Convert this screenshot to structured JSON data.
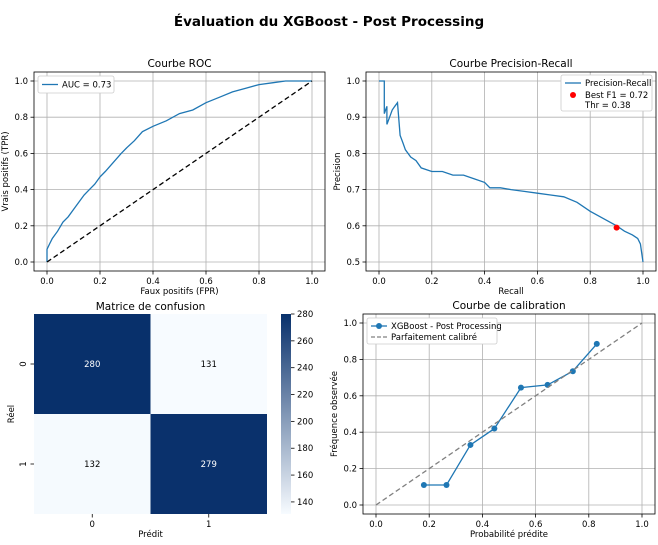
{
  "title": "Évaluation du XGBoost - Post Processing",
  "chart_data": [
    {
      "id": "roc",
      "type": "line",
      "title": "Courbe ROC",
      "xlabel": "Faux positifs (FPR)",
      "ylabel": "Vrais positifs (TPR)",
      "xlim": [
        0,
        1
      ],
      "ylim": [
        0,
        1
      ],
      "ticks": {
        "x": [
          "0.0",
          "0.2",
          "0.4",
          "0.6",
          "0.8",
          "1.0"
        ],
        "y": [
          "0.0",
          "0.2",
          "0.4",
          "0.6",
          "0.8",
          "1.0"
        ]
      },
      "grid": true,
      "legend": {
        "location": "upper left",
        "entries": [
          "AUC = 0.73"
        ]
      },
      "series": [
        {
          "name": "AUC = 0.73",
          "color": "#1f77b4",
          "style": "solid",
          "x": [
            0,
            0,
            0.01,
            0.02,
            0.04,
            0.06,
            0.08,
            0.1,
            0.12,
            0.14,
            0.16,
            0.18,
            0.2,
            0.22,
            0.25,
            0.28,
            0.3,
            0.33,
            0.36,
            0.4,
            0.45,
            0.5,
            0.55,
            0.6,
            0.65,
            0.7,
            0.75,
            0.8,
            0.85,
            0.9,
            0.95,
            1.0
          ],
          "y": [
            0,
            0.07,
            0.1,
            0.13,
            0.17,
            0.22,
            0.25,
            0.29,
            0.33,
            0.37,
            0.4,
            0.43,
            0.47,
            0.5,
            0.55,
            0.6,
            0.63,
            0.67,
            0.72,
            0.75,
            0.78,
            0.82,
            0.84,
            0.88,
            0.91,
            0.94,
            0.96,
            0.98,
            0.99,
            1.0,
            1.0,
            1.0
          ]
        },
        {
          "name": "diagonal",
          "color": "#000000",
          "style": "dashed",
          "x": [
            0,
            1
          ],
          "y": [
            0,
            1
          ]
        }
      ]
    },
    {
      "id": "pr",
      "type": "line",
      "title": "Courbe Precision-Recall",
      "xlabel": "Recall",
      "ylabel": "Precision",
      "xlim": [
        0,
        1
      ],
      "ylim": [
        0.5,
        1.0
      ],
      "ticks": {
        "x": [
          "0.0",
          "0.2",
          "0.4",
          "0.6",
          "0.8",
          "1.0"
        ],
        "y": [
          "0.5",
          "0.6",
          "0.7",
          "0.8",
          "0.9",
          "1.0"
        ]
      },
      "grid": true,
      "legend": {
        "location": "upper right",
        "entries": [
          "Precision-Recall",
          "Best F1 = 0.72",
          "Thr = 0.38"
        ]
      },
      "series": [
        {
          "name": "Precision-Recall",
          "color": "#1f77b4",
          "style": "solid",
          "x": [
            0.0,
            0.02,
            0.02,
            0.03,
            0.03,
            0.04,
            0.05,
            0.06,
            0.07,
            0.08,
            0.09,
            0.1,
            0.12,
            0.14,
            0.16,
            0.2,
            0.24,
            0.28,
            0.32,
            0.36,
            0.4,
            0.42,
            0.46,
            0.5,
            0.55,
            0.6,
            0.65,
            0.7,
            0.75,
            0.8,
            0.85,
            0.9,
            0.93,
            0.96,
            0.98,
            0.99,
            1.0
          ],
          "y": [
            1.0,
            1.0,
            0.91,
            0.93,
            0.88,
            0.9,
            0.92,
            0.93,
            0.94,
            0.85,
            0.83,
            0.81,
            0.79,
            0.78,
            0.76,
            0.75,
            0.75,
            0.74,
            0.74,
            0.73,
            0.72,
            0.705,
            0.705,
            0.7,
            0.695,
            0.69,
            0.685,
            0.68,
            0.665,
            0.64,
            0.62,
            0.6,
            0.585,
            0.575,
            0.565,
            0.55,
            0.5
          ]
        },
        {
          "name": "Best F1 = 0.72\nThr = 0.38",
          "color": "#ff0000",
          "type": "scatter",
          "x": [
            0.9
          ],
          "y": [
            0.595
          ]
        }
      ]
    },
    {
      "id": "confusion",
      "type": "heatmap",
      "title": "Matrice de confusion",
      "xlabel": "Prédit",
      "ylabel": "Réel",
      "x_categories": [
        "0",
        "1"
      ],
      "y_categories": [
        "0",
        "1"
      ],
      "values": [
        [
          280,
          131
        ],
        [
          132,
          279
        ]
      ],
      "colorbar": {
        "min": 131,
        "max": 280,
        "ticks": [
          "140",
          "160",
          "180",
          "200",
          "220",
          "240",
          "260",
          "280"
        ]
      },
      "colormap": [
        "#f7fbff",
        "#08306b"
      ]
    },
    {
      "id": "calibration",
      "type": "line",
      "title": "Courbe de calibration",
      "xlabel": "Probabilité prédite",
      "ylabel": "Fréquence observée",
      "xlim": [
        0,
        1
      ],
      "ylim": [
        0,
        1
      ],
      "ticks": {
        "x": [
          "0.0",
          "0.2",
          "0.4",
          "0.6",
          "0.8",
          "1.0"
        ],
        "y": [
          "0.0",
          "0.2",
          "0.4",
          "0.6",
          "0.8",
          "1.0"
        ]
      },
      "grid": true,
      "legend": {
        "location": "upper left",
        "entries": [
          "XGBoost - Post Processing",
          "Parfaitement calibré"
        ]
      },
      "series": [
        {
          "name": "XGBoost - Post Processing",
          "color": "#1f77b4",
          "style": "solid",
          "markers": true,
          "x": [
            0.18,
            0.265,
            0.355,
            0.445,
            0.545,
            0.645,
            0.74,
            0.83
          ],
          "y": [
            0.11,
            0.11,
            0.33,
            0.42,
            0.645,
            0.66,
            0.735,
            0.885
          ]
        },
        {
          "name": "Parfaitement calibré",
          "color": "#808080",
          "style": "dashed",
          "x": [
            0,
            1
          ],
          "y": [
            0,
            1
          ]
        }
      ]
    }
  ]
}
